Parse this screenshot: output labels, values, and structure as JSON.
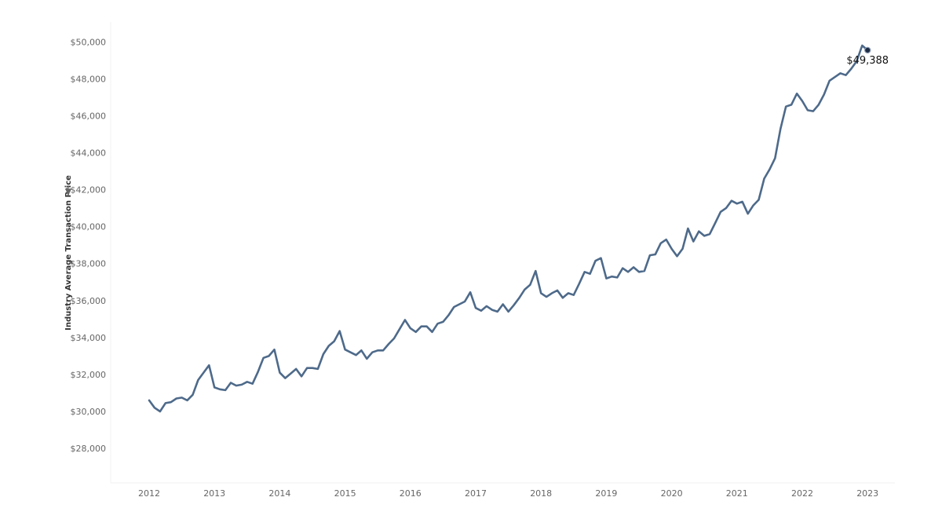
{
  "chart_data": {
    "type": "line",
    "ylabel": "Industry Average Transaction Price",
    "xlabel": "",
    "ylim": [
      26000,
      51500
    ],
    "x_ticks": [
      "2012",
      "2013",
      "2014",
      "2015",
      "2016",
      "2017",
      "2018",
      "2019",
      "2020",
      "2021",
      "2022",
      "2023"
    ],
    "y_ticks": [
      "$28,000",
      "$30,000",
      "$32,000",
      "$34,000",
      "$36,000",
      "$38,000",
      "$40,000",
      "$42,000",
      "$44,000",
      "$46,000",
      "$48,000",
      "$50,000"
    ],
    "end_label": "$49,388",
    "colors": {
      "line": "#4e6a8a",
      "marker_fill": "#1c2a44"
    },
    "series": [
      {
        "start": "2012-01",
        "values": [
          30600,
          30200,
          30000,
          30450,
          30500,
          30700,
          30750,
          30600,
          30900,
          31700,
          32100,
          32500,
          31300,
          31200,
          31150,
          31550,
          31400,
          31450,
          31600,
          31500,
          32150,
          32900,
          33000,
          33350,
          32100,
          31800,
          32050,
          32300,
          31900,
          32350,
          32350,
          32300,
          33100,
          33550,
          33800,
          34350,
          33350,
          33200,
          33050,
          33300,
          32850,
          33200,
          33300,
          33300,
          33650,
          33950,
          34450,
          34950,
          34500,
          34300,
          34600,
          34600,
          34300,
          34750,
          34850,
          35200,
          35650,
          35800,
          35950,
          36450,
          35600,
          35450,
          35700,
          35500,
          35400,
          35800,
          35400,
          35750,
          36150,
          36600,
          36850,
          37600,
          36400,
          36200,
          36400,
          36550,
          36150,
          36400,
          36300,
          36900,
          37550,
          37450,
          38150,
          38300,
          37200,
          37300,
          37250,
          37750,
          37550,
          37800,
          37550,
          37600,
          38450,
          38500,
          39100,
          39300,
          38800,
          38400,
          38800,
          39900,
          39200,
          39750,
          39500,
          39600,
          40200,
          40800,
          41000,
          41400,
          41250,
          41350,
          40700,
          41150,
          41450,
          42600,
          43100,
          43700,
          45300,
          46500,
          46600,
          47200,
          46800,
          46300,
          46250,
          46600,
          47150,
          47900,
          48100,
          48300,
          48200,
          48550,
          48950,
          49800,
          49550
        ]
      }
    ]
  }
}
